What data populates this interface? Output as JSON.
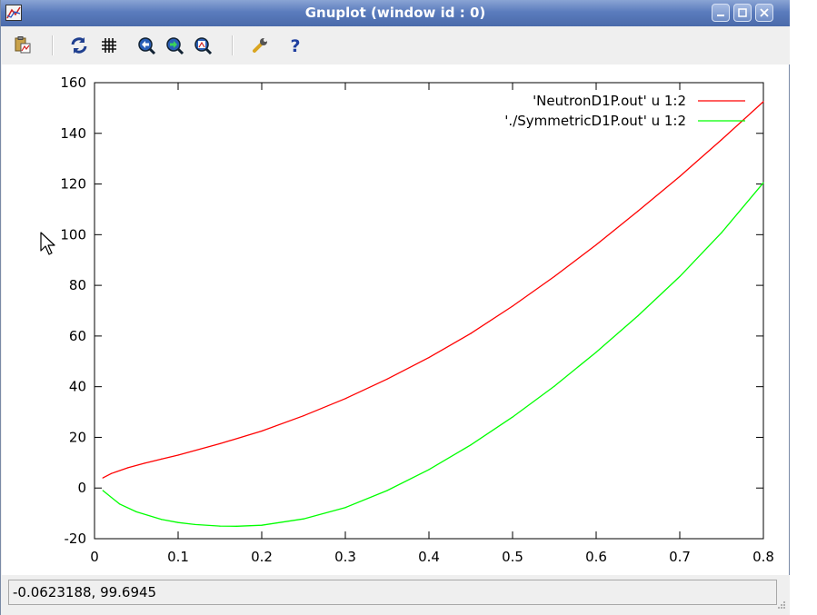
{
  "window": {
    "title": "Gnuplot (window id : 0)",
    "buttons": [
      "minimize",
      "maximize",
      "close"
    ]
  },
  "toolbar": {
    "items": [
      {
        "name": "copy-to-clipboard",
        "icon": "clipboard-icon"
      },
      {
        "name": "replot",
        "icon": "refresh-icon"
      },
      {
        "name": "grid",
        "icon": "grid-icon"
      },
      {
        "name": "previous-zoom",
        "icon": "zoom-back-icon"
      },
      {
        "name": "next-zoom",
        "icon": "zoom-forward-icon"
      },
      {
        "name": "autoscale",
        "icon": "zoom-fit-icon"
      },
      {
        "name": "options",
        "icon": "wrench-icon"
      },
      {
        "name": "help",
        "icon": "help-icon"
      }
    ]
  },
  "status": {
    "coordinates": "-0.0623188,  99.6945"
  },
  "colors": {
    "series1": "#ff0000",
    "series2": "#00ff00",
    "titlebar": "#5b7cbd"
  },
  "chart_data": {
    "type": "line",
    "title": "",
    "xlabel": "",
    "ylabel": "",
    "xlim": [
      0,
      0.8
    ],
    "ylim": [
      -20,
      160
    ],
    "xticks": [
      0,
      0.1,
      0.2,
      0.3,
      0.4,
      0.5,
      0.6,
      0.7,
      0.8
    ],
    "xtick_labels": [
      "0",
      "0.1",
      "0.2",
      "0.3",
      "0.4",
      "0.5",
      "0.6",
      "0.7",
      "0.8"
    ],
    "yticks": [
      -20,
      0,
      20,
      40,
      60,
      80,
      100,
      120,
      140,
      160
    ],
    "ytick_labels": [
      "-20",
      "0",
      "20",
      "40",
      "60",
      "80",
      "100",
      "120",
      "140",
      "160"
    ],
    "grid": false,
    "legend_position": "top-right",
    "series": [
      {
        "name": "'NeutronD1P.out' u 1:2",
        "color": "#ff0000",
        "x": [
          0.01,
          0.02,
          0.04,
          0.06,
          0.08,
          0.1,
          0.15,
          0.2,
          0.25,
          0.3,
          0.35,
          0.4,
          0.45,
          0.5,
          0.55,
          0.6,
          0.65,
          0.7,
          0.75,
          0.8
        ],
        "y": [
          4,
          5.7,
          8,
          9.8,
          11.4,
          13,
          17.5,
          22.5,
          28.5,
          35.3,
          43,
          51.5,
          61,
          71.8,
          83.5,
          96,
          109.3,
          123,
          137.5,
          152.5
        ]
      },
      {
        "name": "'./SymmetricD1P.out' u 1:2",
        "color": "#00ff00",
        "x": [
          0.01,
          0.03,
          0.05,
          0.08,
          0.1,
          0.12,
          0.15,
          0.17,
          0.2,
          0.25,
          0.3,
          0.35,
          0.4,
          0.45,
          0.5,
          0.55,
          0.6,
          0.65,
          0.7,
          0.75,
          0.8
        ],
        "y": [
          -1,
          -6.3,
          -9.4,
          -12.4,
          -13.6,
          -14.4,
          -15,
          -15.1,
          -14.7,
          -12.2,
          -7.7,
          -1,
          7.3,
          17,
          28,
          40.2,
          53.6,
          68,
          83.5,
          100.8,
          120.5
        ]
      }
    ]
  }
}
